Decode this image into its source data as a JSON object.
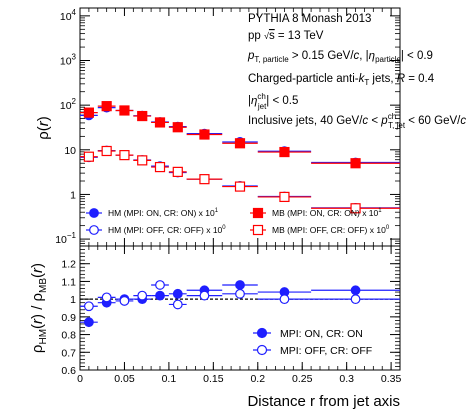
{
  "chart_data": [
    {
      "type": "scatter",
      "xlabel": "",
      "ylabel": "ρ(r)",
      "yscale": "log",
      "xlim": [
        0,
        0.36
      ],
      "ylim": [
        0.07,
        15000
      ],
      "y_ticks": [
        {
          "v": 0.1,
          "base": "10",
          "exp": "−1"
        },
        {
          "v": 1,
          "base": "1",
          "exp": ""
        },
        {
          "v": 10,
          "base": "10",
          "exp": ""
        },
        {
          "v": 100,
          "base": "10",
          "exp": "2"
        },
        {
          "v": 1000,
          "base": "10",
          "exp": "3"
        },
        {
          "v": 10000,
          "base": "10",
          "exp": "4"
        }
      ],
      "annotations": [
        {
          "id": "ann0",
          "text": "PYTHIA 8 Monash 2013"
        },
        {
          "id": "ann1",
          "text": "pp √s = 13 TeV"
        },
        {
          "id": "ann2",
          "text": "p_T,particle > 0.15 GeV/c, |η_particle| < 0.9"
        },
        {
          "id": "ann3",
          "text": "Charged-particle anti-k_T jets, R = 0.4"
        },
        {
          "id": "ann4",
          "text": "|η^ch_jet| < 0.5"
        },
        {
          "id": "ann5",
          "text": "Inclusive jets, 40 GeV/c < p^ch_T,jet < 60 GeV/c"
        }
      ],
      "x_bins": [
        [
          0.0,
          0.02
        ],
        [
          0.02,
          0.04
        ],
        [
          0.04,
          0.06
        ],
        [
          0.06,
          0.08
        ],
        [
          0.08,
          0.1
        ],
        [
          0.1,
          0.12
        ],
        [
          0.12,
          0.16
        ],
        [
          0.16,
          0.2
        ],
        [
          0.2,
          0.26
        ],
        [
          0.26,
          0.36
        ]
      ],
      "x": [
        0.01,
        0.03,
        0.05,
        0.07,
        0.09,
        0.11,
        0.14,
        0.18,
        0.23,
        0.31
      ],
      "series": [
        {
          "name": "HM (MPI: ON, CR: ON) × 10^1",
          "color": "#1f1fff",
          "marker": "circle",
          "filled": true,
          "values": [
            59,
            88,
            76,
            58,
            42,
            33,
            23,
            15,
            9.3,
            5.2
          ]
        },
        {
          "name": "MB (MPI: ON, CR: ON) × 10^1",
          "color": "#ff0000",
          "marker": "square",
          "filled": true,
          "values": [
            68,
            95,
            76,
            57,
            41,
            32,
            22,
            14,
            8.9,
            5.0
          ]
        },
        {
          "name": "HM (MPI: OFF, CR: OFF) × 10^0",
          "color": "#1f1fff",
          "marker": "circle",
          "filled": false,
          "values": [
            6.8,
            9.6,
            7.6,
            5.9,
            4.3,
            3.1,
            2.2,
            1.55,
            0.9,
            0.5
          ]
        },
        {
          "name": "MB (MPI: OFF, CR: OFF) × 10^0",
          "color": "#ff0000",
          "marker": "square",
          "filled": false,
          "values": [
            7.0,
            9.4,
            7.6,
            5.8,
            4.1,
            3.2,
            2.2,
            1.5,
            0.88,
            0.49
          ]
        }
      ],
      "legend": {
        "placement": "bottom",
        "entries": [
          {
            "label": "HM (MPI: ON, CR: ON) x 10",
            "exp": "1",
            "color": "#1f1fff",
            "marker": "circle",
            "filled": true
          },
          {
            "label": "MB (MPI: ON, CR: ON) x 10",
            "exp": "1",
            "color": "#ff0000",
            "marker": "square",
            "filled": true
          },
          {
            "label": "HM (MPI: OFF, CR: OFF) x 10",
            "exp": "0",
            "color": "#1f1fff",
            "marker": "circle",
            "filled": false
          },
          {
            "label": "MB (MPI: OFF, CR: OFF) x 10",
            "exp": "0",
            "color": "#ff0000",
            "marker": "square",
            "filled": false
          }
        ]
      }
    },
    {
      "type": "scatter",
      "xlabel": "Distance r from jet axis",
      "ylabel": "ρ_HM(r) / ρ_MB(r)",
      "xlim": [
        0,
        0.36
      ],
      "ylim": [
        0.6,
        1.3
      ],
      "x_ticks": [
        0,
        0.05,
        0.1,
        0.15,
        0.2,
        0.25,
        0.3,
        0.35
      ],
      "y_ticks": [
        0.6,
        0.7,
        0.8,
        0.9,
        1,
        1.1,
        1.2
      ],
      "reference_line": 1,
      "x_bins": [
        [
          0.0,
          0.02
        ],
        [
          0.02,
          0.04
        ],
        [
          0.04,
          0.06
        ],
        [
          0.06,
          0.08
        ],
        [
          0.08,
          0.1
        ],
        [
          0.1,
          0.12
        ],
        [
          0.12,
          0.16
        ],
        [
          0.16,
          0.2
        ],
        [
          0.2,
          0.26
        ],
        [
          0.26,
          0.36
        ]
      ],
      "x": [
        0.01,
        0.03,
        0.05,
        0.07,
        0.09,
        0.11,
        0.14,
        0.18,
        0.23,
        0.31
      ],
      "series": [
        {
          "name": "MPI: ON, CR: ON",
          "color": "#1f1fff",
          "marker": "circle",
          "filled": true,
          "values": [
            0.87,
            0.98,
            1.0,
            1.0,
            1.02,
            1.03,
            1.05,
            1.08,
            1.04,
            1.05
          ]
        },
        {
          "name": "MPI: OFF, CR: OFF",
          "color": "#1f1fff",
          "marker": "circle",
          "filled": false,
          "values": [
            0.96,
            1.01,
            0.99,
            1.02,
            1.08,
            0.97,
            1.02,
            1.03,
            1.0,
            1.0
          ]
        }
      ],
      "legend": {
        "placement": "bottom-right",
        "entries": [
          {
            "label": "MPI: ON, CR: ON",
            "color": "#1f1fff",
            "marker": "circle",
            "filled": true
          },
          {
            "label": "MPI: OFF, CR: OFF",
            "color": "#1f1fff",
            "marker": "circle",
            "filled": false
          }
        ]
      }
    }
  ]
}
